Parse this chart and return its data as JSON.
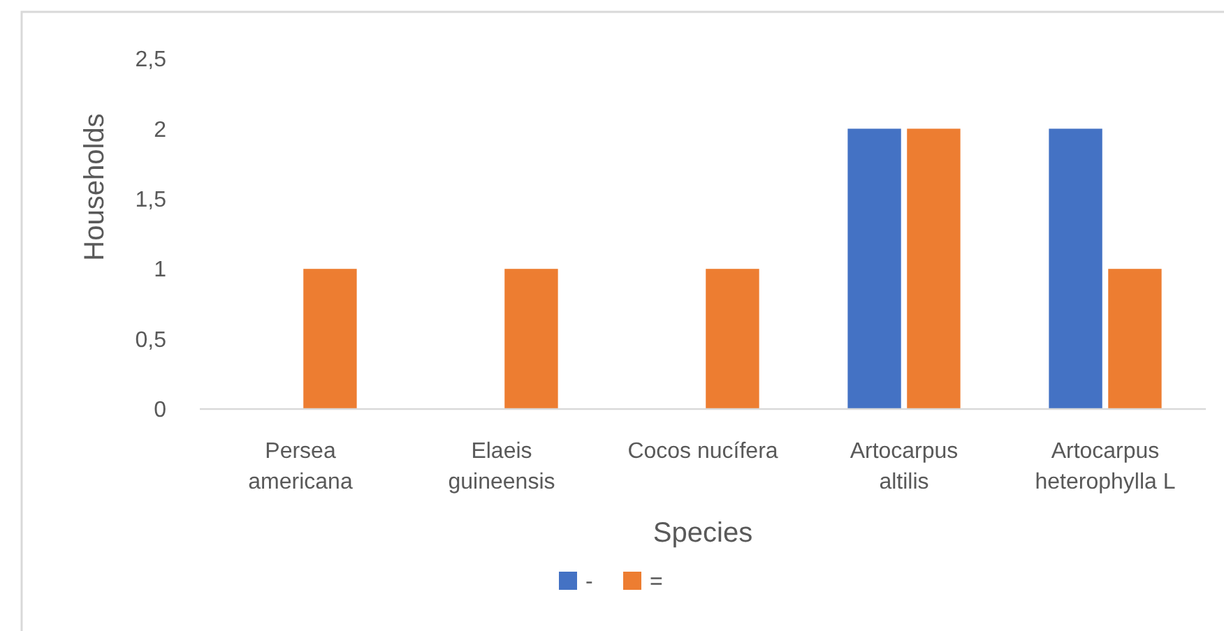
{
  "chart_data": {
    "type": "bar",
    "xlabel": "Species",
    "ylabel": "Households",
    "categories": [
      "Persea americana",
      "Elaeis guineensis",
      "Cocos nucífera",
      "Artocarpus altilis",
      "Artocarpus heterophylla L"
    ],
    "series": [
      {
        "name": "-",
        "color": "#4472c4",
        "values": [
          null,
          null,
          null,
          2,
          2
        ]
      },
      {
        "name": "=",
        "color": "#ed7d31",
        "values": [
          1,
          1,
          1,
          2,
          1
        ]
      }
    ],
    "ylim": [
      0,
      2.5
    ],
    "yticks": [
      0,
      {
        "value": 0.5,
        "label": "0,5"
      },
      1,
      {
        "value": 1.5,
        "label": "1,5"
      },
      2,
      {
        "value": 2.5,
        "label": "2,5"
      }
    ],
    "grid": false,
    "legend": "bottom"
  }
}
